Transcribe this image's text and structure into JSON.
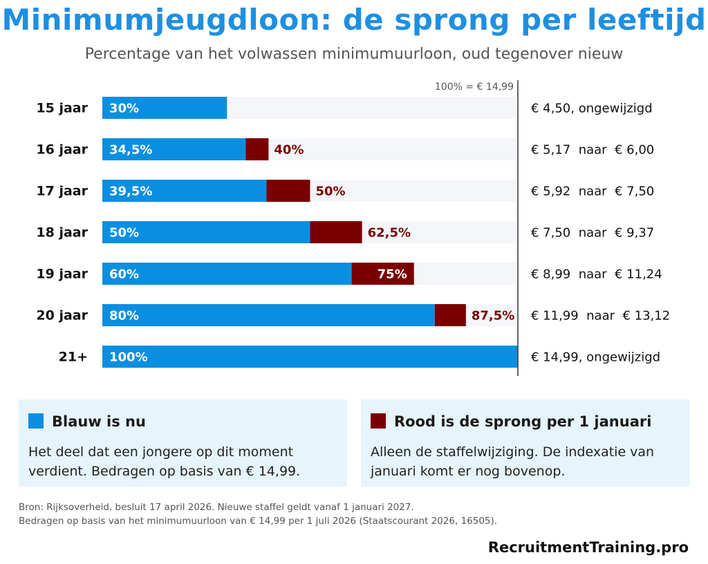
{
  "title": "Minimumjeugdloon: de sprong per leeftijd",
  "subtitle": "Percentage van het volwassen minimumuurloon, oud tegenover nieuw",
  "colors": {
    "blue": "#0a8fe0",
    "red": "#7a0000",
    "track": "#f4f6f9",
    "title": "#1f8fe0"
  },
  "chart_data": {
    "type": "bar",
    "orientation": "horizontal",
    "stacked": true,
    "reference_label": "100% = € 14,99",
    "xlim": [
      0,
      100
    ],
    "categories": [
      "15 jaar",
      "16 jaar",
      "17 jaar",
      "18 jaar",
      "19 jaar",
      "20 jaar",
      "21+"
    ],
    "series": [
      {
        "name": "Blauw is nu",
        "color": "#0a8fe0",
        "values": [
          30,
          34.5,
          39.5,
          50,
          60,
          80,
          100
        ],
        "labels": [
          "30%",
          "34,5%",
          "39,5%",
          "50%",
          "60%",
          "80%",
          "100%"
        ]
      },
      {
        "name": "Rood is de sprong per 1 januari",
        "color": "#7a0000",
        "new_values": [
          30,
          40,
          50,
          62.5,
          75,
          87.5,
          100
        ],
        "labels": [
          "",
          "40%",
          "50%",
          "62,5%",
          "75%",
          "87,5%",
          ""
        ]
      }
    ],
    "amounts": [
      "€ 4,50, ongewijzigd",
      "€ 5,17  naar  € 6,00",
      "€ 5,92  naar  € 7,50",
      "€ 7,50  naar  € 9,37",
      "€ 8,99  naar  € 11,24",
      "€ 11,99  naar  € 13,12",
      "€ 14,99, ongewijzigd"
    ]
  },
  "legend": {
    "blue": {
      "heading": "Blauw is nu",
      "text": "Het deel dat een jongere op dit moment verdient. Bedragen op basis van € 14,99."
    },
    "red": {
      "heading": "Rood is de sprong per 1 januari",
      "text": "Alleen de staffelwijziging. De indexatie van januari komt er nog bovenop."
    }
  },
  "source": {
    "line1": "Bron: Rijksoverheid, besluit 17 april 2026. Nieuwe staffel geldt vanaf 1 januari 2027.",
    "line2": "Bedragen op basis van het minimumuurloon van € 14,99 per 1 juli 2026 (Staatscourant 2026, 16505)."
  },
  "brand": "RecruitmentTraining.pro"
}
